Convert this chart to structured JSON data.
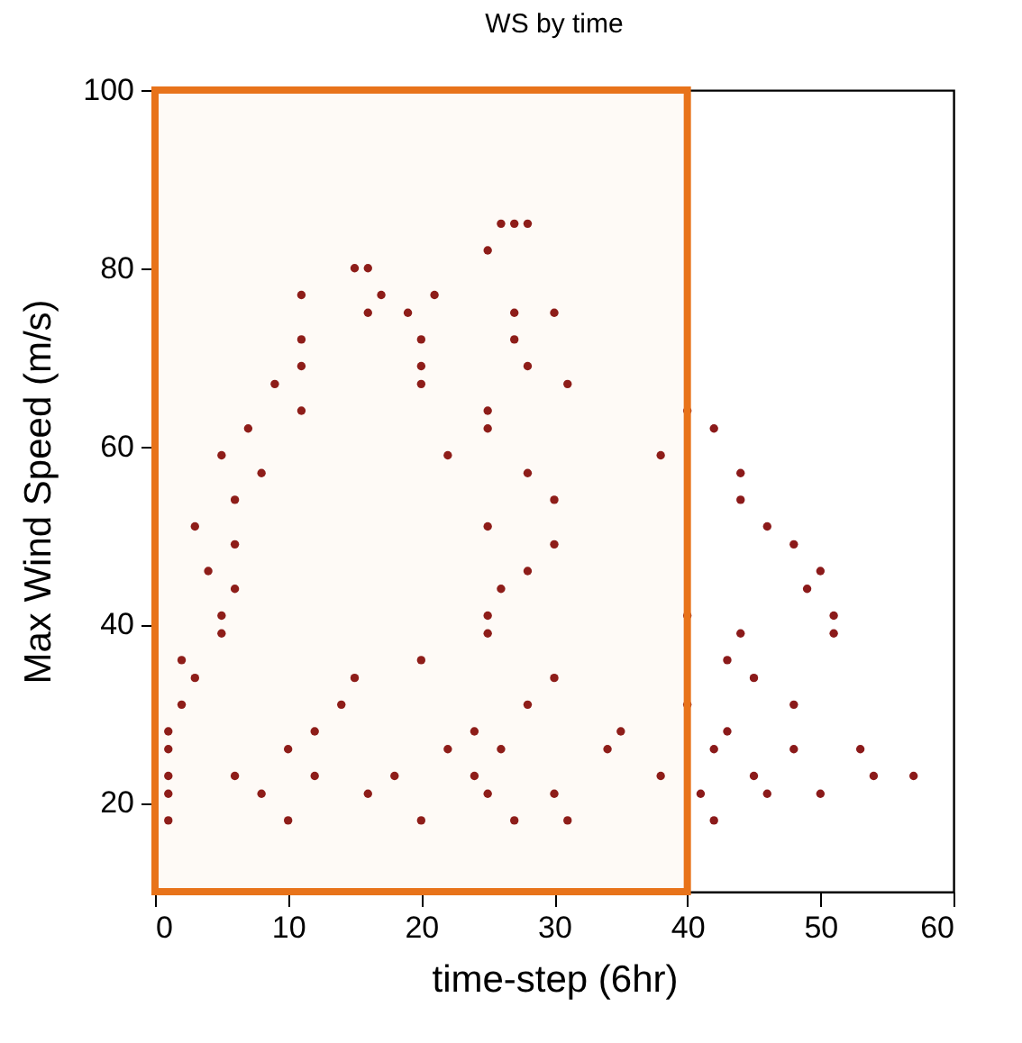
{
  "chart_data": {
    "type": "scatter",
    "title": "WS by time",
    "xlabel": "time-step (6hr)",
    "ylabel": "Max Wind Speed (m/s)",
    "xlim": [
      0,
      60
    ],
    "xticks": [
      0,
      10,
      20,
      30,
      40,
      50,
      60
    ],
    "ylim": [
      10,
      100
    ],
    "yticks": [
      20,
      40,
      60,
      80,
      100
    ],
    "grid": false,
    "marker": "circle",
    "bands": [
      {
        "axis": "x",
        "from": 0,
        "to": 40,
        "color": "#e8731a"
      }
    ],
    "series": [
      {
        "color": "#8b1a1a",
        "x": [
          1,
          10,
          20,
          27,
          31,
          42,
          1,
          8,
          16,
          25,
          30,
          41,
          46,
          50,
          1,
          6,
          12,
          18,
          24,
          38,
          45,
          54,
          57,
          1,
          10,
          22,
          26,
          34,
          42,
          48,
          53,
          1,
          12,
          24,
          35,
          43,
          2,
          14,
          28,
          40,
          48,
          3,
          15,
          30,
          45,
          2,
          20,
          43,
          5,
          25,
          44,
          51,
          5,
          25,
          40,
          51,
          6,
          26,
          49,
          4,
          28,
          50,
          6,
          30,
          48,
          3,
          25,
          46,
          6,
          30,
          44,
          8,
          28,
          44,
          5,
          22,
          38,
          7,
          25,
          42,
          11,
          25,
          40,
          9,
          20,
          31,
          11,
          20,
          28,
          11,
          20,
          27,
          16,
          19,
          27,
          30,
          11,
          17,
          21,
          15,
          16,
          25,
          26,
          27,
          28
        ],
        "values": [
          18,
          18,
          18,
          18,
          18,
          18,
          21,
          21,
          21,
          21,
          21,
          21,
          21,
          21,
          23,
          23,
          23,
          23,
          23,
          23,
          23,
          23,
          23,
          26,
          26,
          26,
          26,
          26,
          26,
          26,
          26,
          28,
          28,
          28,
          28,
          28,
          31,
          31,
          31,
          31,
          31,
          34,
          34,
          34,
          34,
          36,
          36,
          36,
          39,
          39,
          39,
          39,
          41,
          41,
          41,
          41,
          44,
          44,
          44,
          46,
          46,
          46,
          49,
          49,
          49,
          51,
          51,
          51,
          54,
          54,
          54,
          57,
          57,
          57,
          59,
          59,
          59,
          62,
          62,
          62,
          64,
          64,
          64,
          67,
          67,
          67,
          69,
          69,
          69,
          72,
          72,
          72,
          75,
          75,
          75,
          75,
          77,
          77,
          77,
          80,
          80,
          82,
          85,
          85,
          85
        ]
      }
    ]
  }
}
